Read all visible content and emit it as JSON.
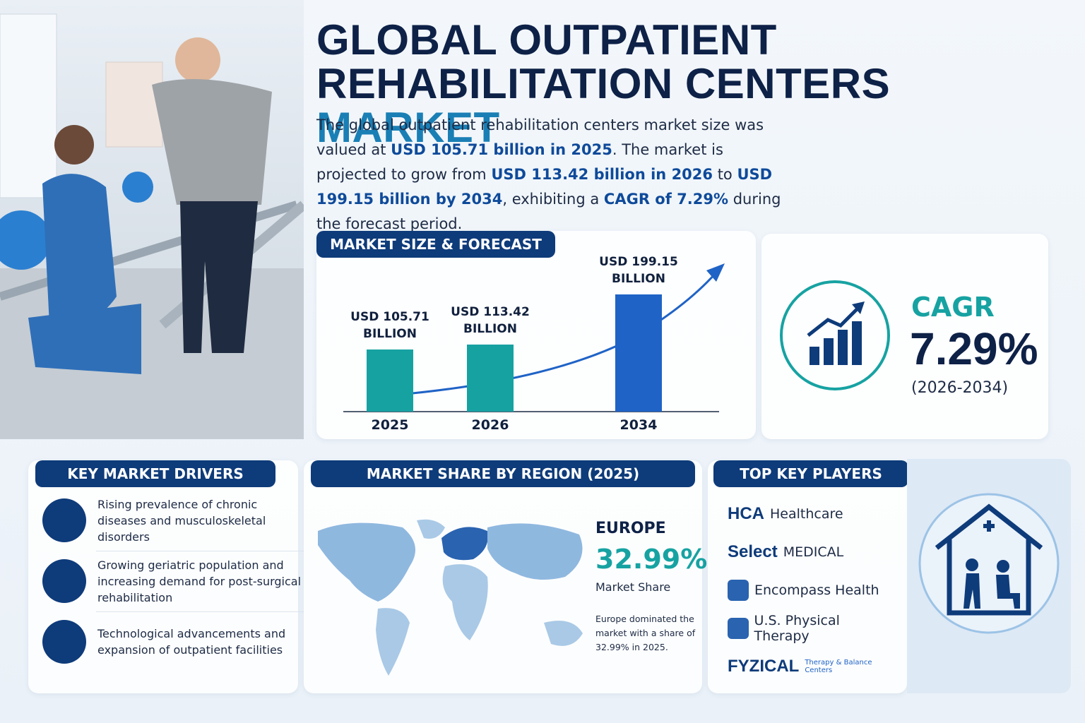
{
  "header": {
    "title": "GLOBAL OUTPATIENT REHABILITATION CENTERS",
    "title_highlight": "MARKET",
    "intro": [
      "The global outpatient rehabilitation centers market size was valued at ",
      "USD 105.71 billion in 2025",
      ". The market is projected to grow from ",
      "USD 113.42 billion in 2026",
      " to ",
      "USD 199.15 billion by 2034",
      ", exhibiting a ",
      "CAGR of 7.29%",
      " during the forecast period."
    ]
  },
  "chart_data": {
    "type": "bar",
    "title": "MARKET SIZE & FORECAST",
    "categories": [
      "2025",
      "2026",
      "2034"
    ],
    "values": [
      105.71,
      113.42,
      199.15
    ],
    "value_labels": [
      "USD 105.71 BILLION",
      "USD 113.42 BILLION",
      "USD 199.15 BILLION"
    ],
    "colors": [
      "#17a2a2",
      "#17a2a2",
      "#1f63c6"
    ]
  },
  "cagr": {
    "label": "CAGR",
    "value": "7.29%",
    "period": "(2026-2034)"
  },
  "drivers": {
    "title": "KEY MARKET DRIVERS",
    "items": [
      "Rising prevalence of chronic diseases and musculoskeletal disorders",
      "Growing geriatric population and increasing demand for post-surgical rehabilitation",
      "Technological advancements and expansion of outpatient facilities"
    ]
  },
  "region": {
    "title": "MARKET SHARE BY REGION (2025)",
    "name": "EUROPE",
    "share": "32.99%",
    "share_label": "Market Share",
    "note": "Europe dominated the market with a share of 32.99% in 2025."
  },
  "players": {
    "title": "TOP KEY PLAYERS",
    "items": [
      {
        "logo": "HCA",
        "name": "Healthcare"
      },
      {
        "logo": "Select",
        "name": "MEDICAL"
      },
      {
        "name": "Encompass Health"
      },
      {
        "name": "U.S. Physical Therapy"
      },
      {
        "logo": "FYZICAL",
        "name": "Therapy & Balance Centers"
      }
    ]
  }
}
